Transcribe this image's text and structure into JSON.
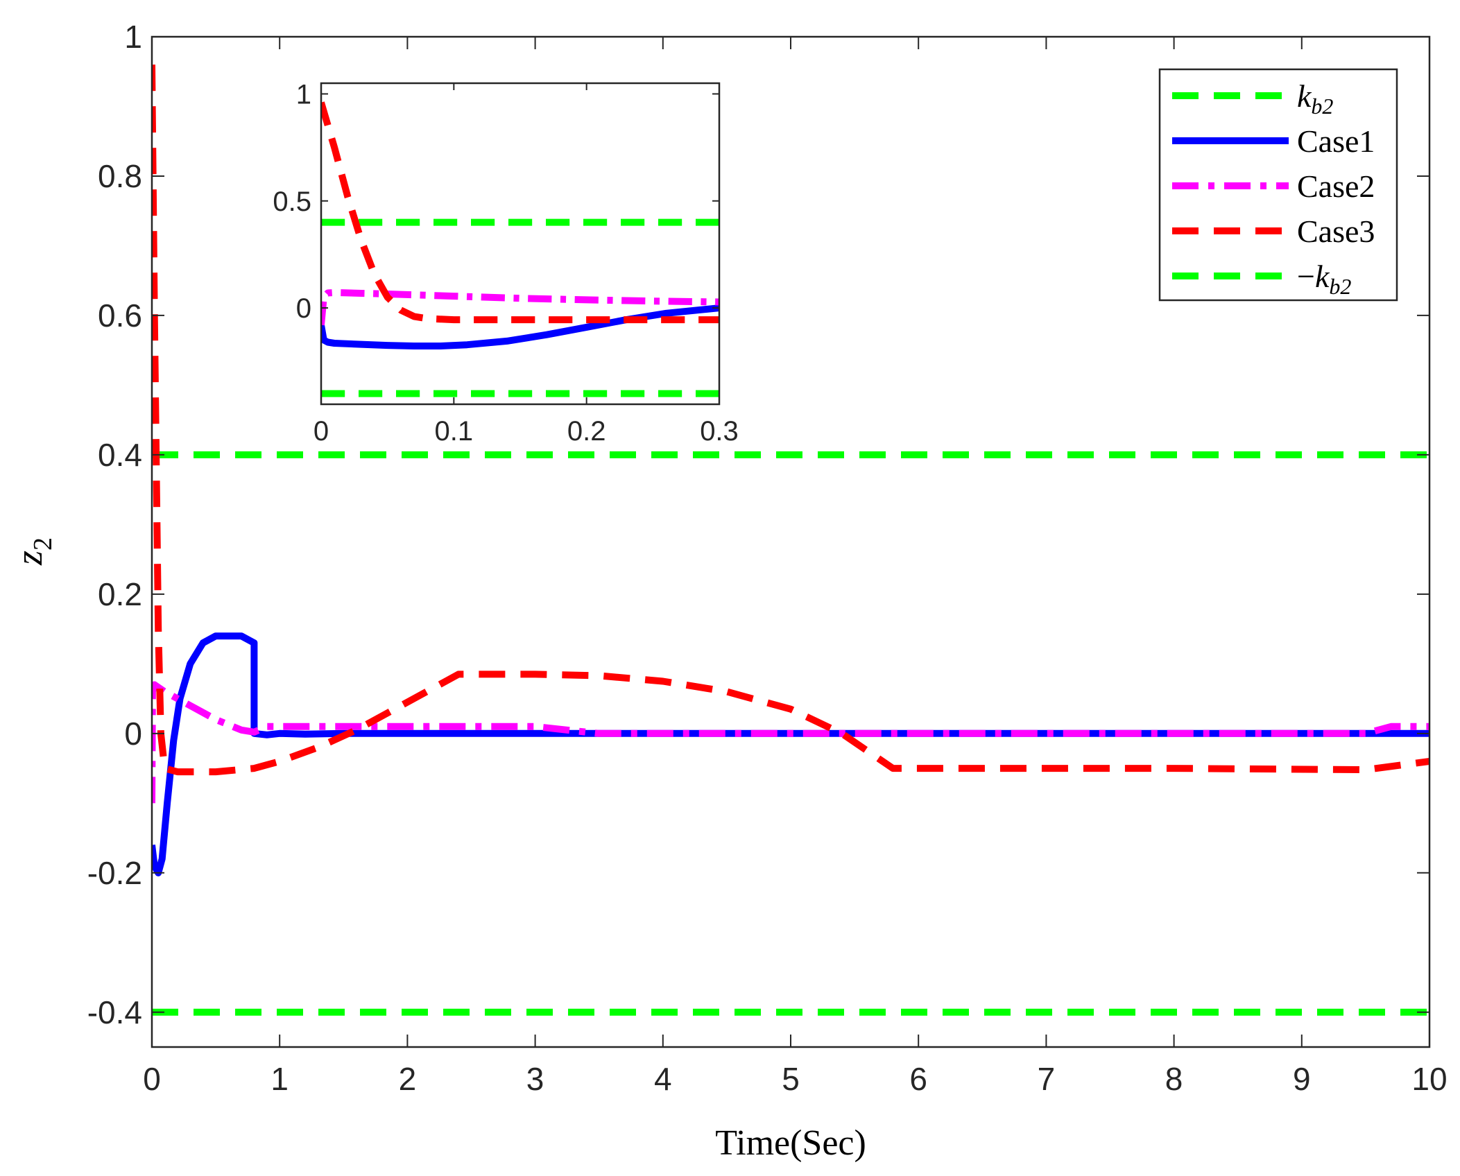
{
  "chart_data": [
    {
      "id": "main",
      "type": "line",
      "xlabel": "Time(Sec)",
      "ylabel": "z",
      "ylabel_sub": "2",
      "xlim": [
        0,
        10
      ],
      "ylim": [
        -0.45,
        1
      ],
      "xticks": [
        0,
        1,
        2,
        3,
        4,
        5,
        6,
        7,
        8,
        9,
        10
      ],
      "xtick_labels": [
        "0",
        "1",
        "2",
        "3",
        "4",
        "5",
        "6",
        "7",
        "8",
        "9",
        "10"
      ],
      "yticks": [
        -0.4,
        -0.2,
        0,
        0.2,
        0.4,
        0.6,
        0.8,
        1
      ],
      "ytick_labels": [
        "-0.4",
        "-0.2",
        "0",
        "0.2",
        "0.4",
        "0.6",
        "0.8",
        "1"
      ],
      "legend_position": "top-right",
      "series": [
        {
          "name": "kb2",
          "label": "k",
          "label_sub": "b2",
          "label_prefix": "",
          "color": "#00ff00",
          "style": "dashed",
          "x": [
            0,
            10
          ],
          "y": [
            0.4,
            0.4
          ]
        },
        {
          "name": "Case1",
          "label": "Case1",
          "color": "#0000ff",
          "style": "solid",
          "x": [
            0,
            0.02,
            0.05,
            0.08,
            0.12,
            0.17,
            0.22,
            0.3,
            0.4,
            0.5,
            0.6,
            0.7,
            0.8,
            0.8,
            0.9,
            1.0,
            1.2,
            1.5,
            2,
            3,
            4,
            5,
            6,
            7,
            8,
            9,
            10
          ],
          "y": [
            -0.16,
            -0.19,
            -0.2,
            -0.18,
            -0.1,
            -0.01,
            0.05,
            0.1,
            0.13,
            0.14,
            0.14,
            0.14,
            0.13,
            0.0,
            -0.002,
            0.0,
            -0.001,
            0.0,
            0,
            0,
            0,
            0,
            0,
            0,
            0,
            0,
            0
          ]
        },
        {
          "name": "Case2",
          "label": "Case2",
          "color": "#ff00ff",
          "style": "dashdot",
          "x": [
            0,
            0.005,
            0.02,
            0.1,
            0.3,
            0.5,
            0.7,
            0.8,
            0.9,
            1.2,
            2,
            3,
            3.5,
            4,
            6,
            8,
            9.5,
            9.7,
            10
          ],
          "y": [
            -0.1,
            0.06,
            0.07,
            0.06,
            0.04,
            0.02,
            0.005,
            0.002,
            0.01,
            0.01,
            0.01,
            0.01,
            0,
            0,
            0,
            0,
            0,
            0.01,
            0.01
          ]
        },
        {
          "name": "Case3",
          "label": "Case3",
          "color": "#ff0000",
          "style": "dashed",
          "x": [
            0,
            0.02,
            0.05,
            0.07,
            0.1,
            0.2,
            0.5,
            0.8,
            1.0,
            1.3,
            1.6,
            2.0,
            2.4,
            3.0,
            3.5,
            4.0,
            4.5,
            5.0,
            5.4,
            5.8,
            6.5,
            8,
            9.5,
            10
          ],
          "y": [
            0.96,
            0.6,
            0.15,
            0.0,
            -0.05,
            -0.055,
            -0.055,
            -0.05,
            -0.04,
            -0.02,
            0.005,
            0.045,
            0.085,
            0.085,
            0.083,
            0.075,
            0.06,
            0.035,
            0.0,
            -0.05,
            -0.05,
            -0.05,
            -0.052,
            -0.04
          ]
        },
        {
          "name": "neg-kb2",
          "label": "k",
          "label_sub": "b2",
          "label_prefix": "−",
          "color": "#00ff00",
          "style": "dashed",
          "x": [
            0,
            10
          ],
          "y": [
            -0.4,
            -0.4
          ]
        }
      ]
    },
    {
      "id": "inset",
      "type": "line",
      "xlim": [
        0,
        0.3
      ],
      "ylim": [
        -0.45,
        1.05
      ],
      "xticks": [
        0,
        0.1,
        0.2,
        0.3
      ],
      "xtick_labels": [
        "0",
        "0.1",
        "0.2",
        "0.3"
      ],
      "yticks": [
        0,
        0.5,
        1
      ],
      "ytick_labels": [
        "0",
        "0.5",
        "1"
      ],
      "series": [
        {
          "name": "kb2",
          "color": "#00ff00",
          "style": "dashed",
          "x": [
            0,
            0.3
          ],
          "y": [
            0.4,
            0.4
          ]
        },
        {
          "name": "neg-kb2",
          "color": "#00ff00",
          "style": "dashed",
          "x": [
            0,
            0.3
          ],
          "y": [
            -0.4,
            -0.4
          ]
        },
        {
          "name": "Case1",
          "color": "#0000ff",
          "style": "solid",
          "x": [
            0,
            0.002,
            0.005,
            0.01,
            0.03,
            0.05,
            0.07,
            0.09,
            0.11,
            0.14,
            0.17,
            0.2,
            0.23,
            0.26,
            0.3
          ],
          "y": [
            -0.08,
            -0.15,
            -0.16,
            -0.165,
            -0.17,
            -0.175,
            -0.178,
            -0.178,
            -0.172,
            -0.155,
            -0.125,
            -0.09,
            -0.055,
            -0.025,
            0.0
          ]
        },
        {
          "name": "Case2",
          "color": "#ff00ff",
          "style": "dashdot",
          "x": [
            0,
            0.002,
            0.005,
            0.01,
            0.05,
            0.1,
            0.15,
            0.2,
            0.25,
            0.3
          ],
          "y": [
            -0.08,
            0.05,
            0.07,
            0.072,
            0.065,
            0.055,
            0.045,
            0.038,
            0.032,
            0.028
          ]
        },
        {
          "name": "Case3",
          "color": "#ff0000",
          "style": "dashed",
          "x": [
            0,
            0.01,
            0.02,
            0.03,
            0.04,
            0.05,
            0.06,
            0.07,
            0.08,
            0.1,
            0.15,
            0.2,
            0.25,
            0.3
          ],
          "y": [
            0.96,
            0.75,
            0.52,
            0.32,
            0.16,
            0.05,
            -0.01,
            -0.04,
            -0.05,
            -0.055,
            -0.055,
            -0.055,
            -0.055,
            -0.055
          ]
        }
      ]
    }
  ]
}
